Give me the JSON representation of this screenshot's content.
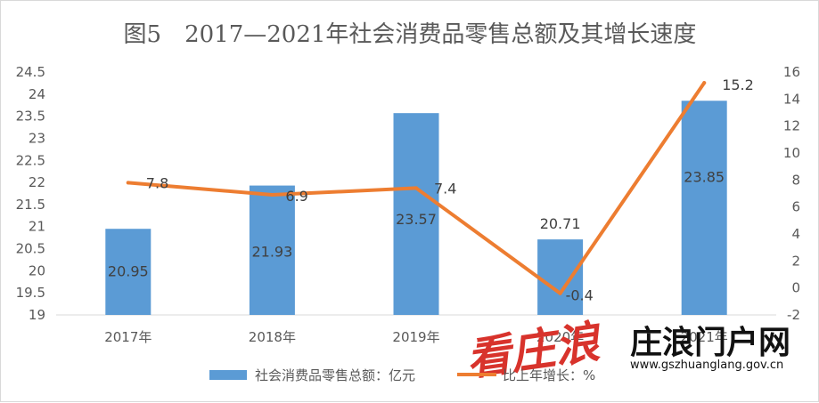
{
  "chart_data": {
    "type": "bar+line",
    "title": "图5　2017—2021年社会消费品零售总额及其增长速度",
    "categories": [
      "2017年",
      "2018年",
      "2019年",
      "2020年",
      "2021年"
    ],
    "series": [
      {
        "name": "社会消费品零售总额：亿元",
        "type": "bar",
        "axis": "left",
        "color": "#5b9bd5",
        "values": [
          20.95,
          21.93,
          23.57,
          20.71,
          23.85
        ],
        "labels": [
          "20.95",
          "21.93",
          "23.57",
          "20.71",
          "23.85"
        ]
      },
      {
        "name": "比上年增长：%",
        "type": "line",
        "axis": "right",
        "color": "#ed7d31",
        "values": [
          7.8,
          6.9,
          7.4,
          -0.4,
          15.2
        ],
        "labels": [
          "7.8",
          "6.9",
          "7.4",
          "-0.4",
          "15.2"
        ]
      }
    ],
    "y_left": {
      "min": 19,
      "max": 24.5,
      "ticks": [
        "19",
        "19.5",
        "20",
        "20.5",
        "21",
        "21.5",
        "22",
        "22.5",
        "23",
        "23.5",
        "24",
        "24.5"
      ]
    },
    "y_right": {
      "min": -2,
      "max": 16,
      "ticks": [
        "-2",
        "0",
        "2",
        "4",
        "6",
        "8",
        "10",
        "12",
        "14",
        "16"
      ]
    },
    "legend_position": "bottom",
    "grid": false
  },
  "watermark": {
    "brand_text": "庄浪门户网",
    "url": "www.gszhuanglang.gov.cn",
    "calligraphy_text": "看庄浪"
  }
}
